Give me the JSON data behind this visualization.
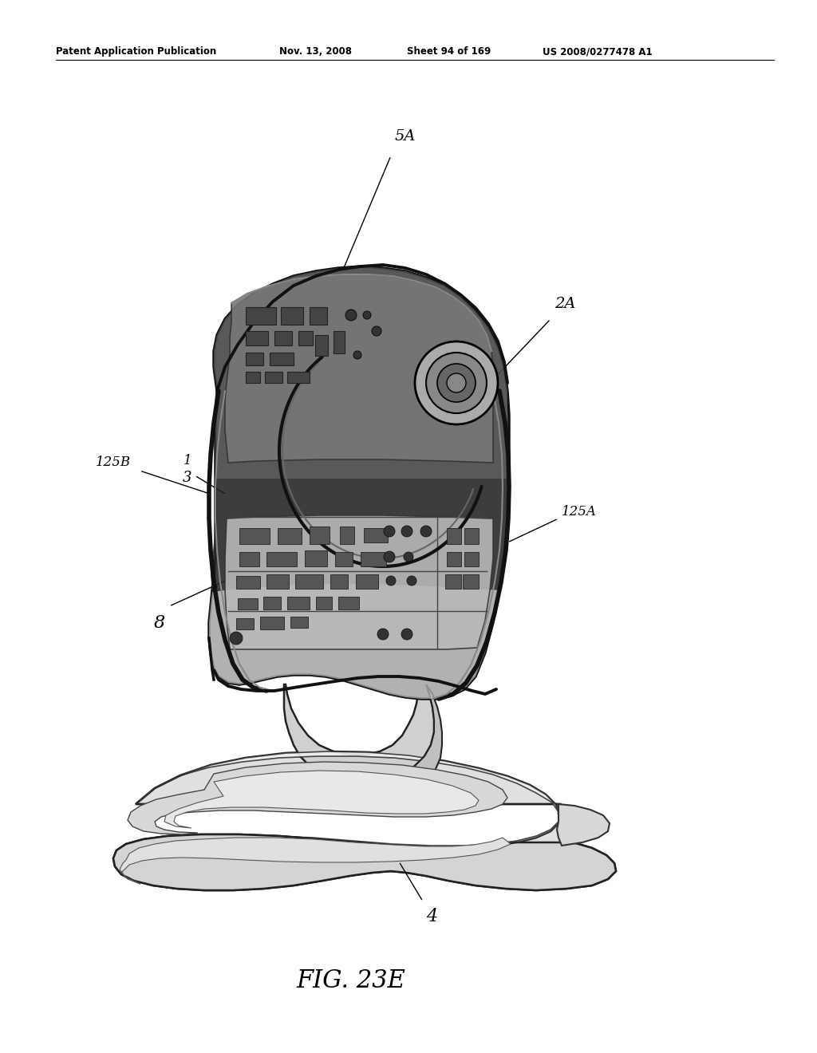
{
  "background_color": "#ffffff",
  "fig_width": 10.24,
  "fig_height": 13.2,
  "dpi": 100,
  "header_left": "Patent Application Publication",
  "header_mid": "Nov. 13, 2008  Sheet 94 of 169",
  "header_right": "US 2008/0277478 A1",
  "figure_caption": "FIG. 23E",
  "device": {
    "body_color": "#909090",
    "body_dark": "#404040",
    "body_mid": "#606060",
    "body_light": "#c8c8c8",
    "edge_color": "#111111",
    "panel_color": "#b0b0b0"
  },
  "base": {
    "top_color": "#e8e8e8",
    "side_color": "#c0c0c0",
    "edge_color": "#111111"
  }
}
